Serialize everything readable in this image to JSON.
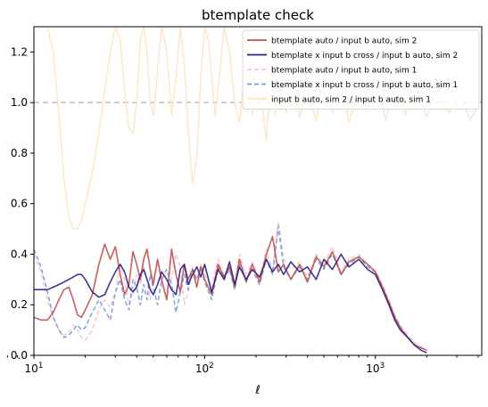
{
  "chart_data": {
    "type": "line",
    "title": "btemplate check",
    "xlabel": "ℓ",
    "ylabel": "",
    "xscale": "log",
    "xlim": [
      10,
      4200
    ],
    "ylim": [
      0,
      1.3
    ],
    "grid": false,
    "legend_position": "top-right",
    "yticks": [
      {
        "value": 0.0,
        "label": "0.0"
      },
      {
        "value": 0.2,
        "label": "0.2"
      },
      {
        "value": 0.4,
        "label": "0.4"
      },
      {
        "value": 0.6,
        "label": "0.6"
      },
      {
        "value": 0.8,
        "label": "0.8"
      },
      {
        "value": 1.0,
        "label": "1.0"
      },
      {
        "value": 1.2,
        "label": "1.2"
      }
    ],
    "xticks": [
      {
        "value": 10,
        "base": "10",
        "exp": "1"
      },
      {
        "value": 100,
        "base": "10",
        "exp": "2"
      },
      {
        "value": 1000,
        "base": "10",
        "exp": "3"
      }
    ],
    "reference_line": {
      "y": 1.0,
      "color": "#bfbfbf",
      "style": "dashed"
    },
    "series": [
      {
        "name": "input b auto, sim 2 / input b auto, sim 1",
        "color": "#fde5c5",
        "style": "solid",
        "x": [
          10,
          11,
          12,
          13,
          14,
          15,
          16,
          17,
          18,
          19,
          20,
          22,
          24,
          26,
          28,
          30,
          32,
          34,
          36,
          38,
          40,
          42,
          44,
          46,
          48,
          50,
          53,
          56,
          60,
          64,
          68,
          72,
          76,
          80,
          85,
          90,
          95,
          100,
          105,
          110,
          115,
          120,
          130,
          140,
          150,
          160,
          170,
          180,
          190,
          200,
          215,
          230,
          245,
          260,
          280,
          300,
          330,
          360,
          400,
          450,
          500,
          560,
          630,
          700,
          800,
          900,
          1000,
          1150,
          1300,
          1500,
          1700,
          2000,
          2300,
          2700,
          3100,
          3600,
          4200
        ],
        "y": [
          1.3,
          1.3,
          1.3,
          1.2,
          0.95,
          0.7,
          0.55,
          0.5,
          0.5,
          0.53,
          0.6,
          0.72,
          0.88,
          1.05,
          1.2,
          1.3,
          1.25,
          1.05,
          0.9,
          0.88,
          1.0,
          1.25,
          1.3,
          1.2,
          1.0,
          0.95,
          1.12,
          1.3,
          1.2,
          0.95,
          1.1,
          1.3,
          1.15,
          0.9,
          0.68,
          0.78,
          1.1,
          1.3,
          1.25,
          1.1,
          0.95,
          1.05,
          1.3,
          1.2,
          1.0,
          0.92,
          1.1,
          1.25,
          0.95,
          1.1,
          1.02,
          0.85,
          1.15,
          0.95,
          1.08,
          0.96,
          1.12,
          0.94,
          1.05,
          0.93,
          1.1,
          0.96,
          1.08,
          0.92,
          1.06,
          0.97,
          1.12,
          0.93,
          1.07,
          0.95,
          1.1,
          0.94,
          1.06,
          0.96,
          1.04,
          0.93,
          1.02
        ]
      },
      {
        "name": "btemplate auto / input b auto, sim 1",
        "color": "#f7c3cf",
        "style": "dashed",
        "x": [
          10,
          11,
          12,
          13,
          14,
          15,
          16,
          17,
          18,
          19,
          20,
          22,
          24,
          26,
          28,
          30,
          32,
          34,
          36,
          38,
          40,
          42,
          44,
          46,
          48,
          50,
          53,
          56,
          60,
          64,
          68,
          72,
          76,
          80,
          85,
          90,
          95,
          100,
          110,
          120,
          130,
          140,
          150,
          160,
          175,
          190,
          210,
          230,
          250,
          270,
          290,
          320,
          360,
          400,
          450,
          500,
          560,
          630,
          700,
          800,
          900,
          1000,
          1100,
          1200,
          1300,
          1400,
          1550,
          1700,
          1850,
          2000
        ],
        "y": [
          0.4,
          0.33,
          0.22,
          0.15,
          0.1,
          0.08,
          0.09,
          0.12,
          0.1,
          0.07,
          0.06,
          0.1,
          0.18,
          0.22,
          0.19,
          0.25,
          0.35,
          0.3,
          0.2,
          0.25,
          0.32,
          0.28,
          0.35,
          0.3,
          0.22,
          0.3,
          0.36,
          0.28,
          0.22,
          0.3,
          0.4,
          0.35,
          0.2,
          0.25,
          0.35,
          0.3,
          0.36,
          0.32,
          0.27,
          0.38,
          0.31,
          0.36,
          0.29,
          0.4,
          0.32,
          0.37,
          0.3,
          0.42,
          0.33,
          0.53,
          0.38,
          0.34,
          0.37,
          0.31,
          0.4,
          0.36,
          0.43,
          0.33,
          0.38,
          0.4,
          0.36,
          0.34,
          0.28,
          0.22,
          0.16,
          0.12,
          0.08,
          0.05,
          0.03,
          0.02
        ]
      },
      {
        "name": "btemplate x input b cross / input b auto, sim 1",
        "color": "#7b9cdf",
        "style": "dashed",
        "x": [
          10,
          11,
          12,
          13,
          14,
          15,
          16,
          17,
          18,
          19,
          20,
          22,
          24,
          26,
          28,
          30,
          32,
          34,
          36,
          38,
          40,
          42,
          44,
          46,
          48,
          50,
          53,
          56,
          60,
          64,
          68,
          72,
          76,
          80,
          85,
          90,
          95,
          100,
          110,
          120,
          130,
          140,
          150,
          160,
          175,
          190,
          210,
          230,
          250,
          270,
          290,
          320,
          360,
          400,
          450,
          500,
          560,
          630,
          700,
          800,
          900,
          1000,
          1100,
          1200,
          1300,
          1400,
          1550,
          1700,
          1850,
          2000
        ],
        "y": [
          0.42,
          0.35,
          0.25,
          0.15,
          0.1,
          0.07,
          0.08,
          0.1,
          0.12,
          0.1,
          0.11,
          0.17,
          0.22,
          0.18,
          0.14,
          0.25,
          0.3,
          0.22,
          0.18,
          0.3,
          0.27,
          0.2,
          0.28,
          0.22,
          0.32,
          0.27,
          0.2,
          0.3,
          0.34,
          0.28,
          0.17,
          0.25,
          0.32,
          0.26,
          0.34,
          0.3,
          0.35,
          0.29,
          0.22,
          0.35,
          0.3,
          0.34,
          0.26,
          0.36,
          0.3,
          0.34,
          0.28,
          0.38,
          0.32,
          0.51,
          0.35,
          0.3,
          0.35,
          0.3,
          0.38,
          0.34,
          0.4,
          0.32,
          0.36,
          0.39,
          0.35,
          0.33,
          0.27,
          0.21,
          0.15,
          0.11,
          0.07,
          0.04,
          0.03,
          0.02
        ]
      },
      {
        "name": "btemplate auto / input b auto, sim 2",
        "color": "#c0504d",
        "style": "solid",
        "x": [
          10,
          11,
          12,
          13,
          14,
          15,
          16,
          17,
          18,
          19,
          20,
          22,
          24,
          26,
          28,
          30,
          32,
          34,
          36,
          38,
          40,
          42,
          44,
          46,
          48,
          50,
          53,
          56,
          60,
          64,
          68,
          72,
          76,
          80,
          85,
          90,
          95,
          100,
          110,
          120,
          130,
          140,
          150,
          160,
          175,
          190,
          210,
          230,
          250,
          270,
          290,
          320,
          360,
          400,
          450,
          500,
          560,
          630,
          700,
          800,
          900,
          1000,
          1100,
          1200,
          1300,
          1400,
          1550,
          1700,
          1850,
          2000
        ],
        "y": [
          0.15,
          0.14,
          0.14,
          0.17,
          0.22,
          0.26,
          0.27,
          0.22,
          0.16,
          0.15,
          0.18,
          0.24,
          0.36,
          0.44,
          0.38,
          0.43,
          0.32,
          0.24,
          0.28,
          0.41,
          0.36,
          0.3,
          0.38,
          0.42,
          0.34,
          0.28,
          0.38,
          0.3,
          0.22,
          0.42,
          0.32,
          0.25,
          0.36,
          0.3,
          0.34,
          0.27,
          0.35,
          0.3,
          0.24,
          0.36,
          0.31,
          0.35,
          0.27,
          0.38,
          0.29,
          0.36,
          0.29,
          0.4,
          0.47,
          0.33,
          0.36,
          0.3,
          0.36,
          0.29,
          0.39,
          0.35,
          0.41,
          0.32,
          0.37,
          0.39,
          0.36,
          0.33,
          0.27,
          0.21,
          0.15,
          0.11,
          0.07,
          0.04,
          0.03,
          0.02
        ]
      },
      {
        "name": "btemplate x input b cross / input b auto, sim 2",
        "color": "#2b2187",
        "style": "solid",
        "x": [
          10,
          11,
          12,
          13,
          14,
          15,
          16,
          17,
          18,
          19,
          20,
          22,
          24,
          26,
          28,
          30,
          32,
          34,
          36,
          38,
          40,
          42,
          44,
          46,
          48,
          50,
          53,
          56,
          60,
          64,
          68,
          72,
          76,
          80,
          85,
          90,
          95,
          100,
          110,
          120,
          130,
          140,
          150,
          160,
          175,
          190,
          210,
          230,
          250,
          270,
          290,
          320,
          360,
          400,
          450,
          500,
          560,
          630,
          700,
          800,
          900,
          1000,
          1100,
          1200,
          1300,
          1400,
          1550,
          1700,
          1850,
          2000
        ],
        "y": [
          0.26,
          0.26,
          0.26,
          0.27,
          0.28,
          0.29,
          0.3,
          0.31,
          0.32,
          0.32,
          0.3,
          0.25,
          0.23,
          0.24,
          0.29,
          0.33,
          0.36,
          0.33,
          0.27,
          0.25,
          0.27,
          0.32,
          0.34,
          0.3,
          0.26,
          0.24,
          0.28,
          0.33,
          0.3,
          0.26,
          0.24,
          0.34,
          0.36,
          0.28,
          0.32,
          0.35,
          0.31,
          0.36,
          0.25,
          0.34,
          0.3,
          0.37,
          0.28,
          0.35,
          0.3,
          0.34,
          0.31,
          0.38,
          0.33,
          0.36,
          0.32,
          0.37,
          0.33,
          0.35,
          0.3,
          0.38,
          0.34,
          0.4,
          0.35,
          0.38,
          0.34,
          0.32,
          0.26,
          0.2,
          0.14,
          0.1,
          0.07,
          0.04,
          0.02,
          0.01
        ]
      }
    ],
    "legend_order": [
      3,
      4,
      1,
      2,
      0
    ]
  }
}
